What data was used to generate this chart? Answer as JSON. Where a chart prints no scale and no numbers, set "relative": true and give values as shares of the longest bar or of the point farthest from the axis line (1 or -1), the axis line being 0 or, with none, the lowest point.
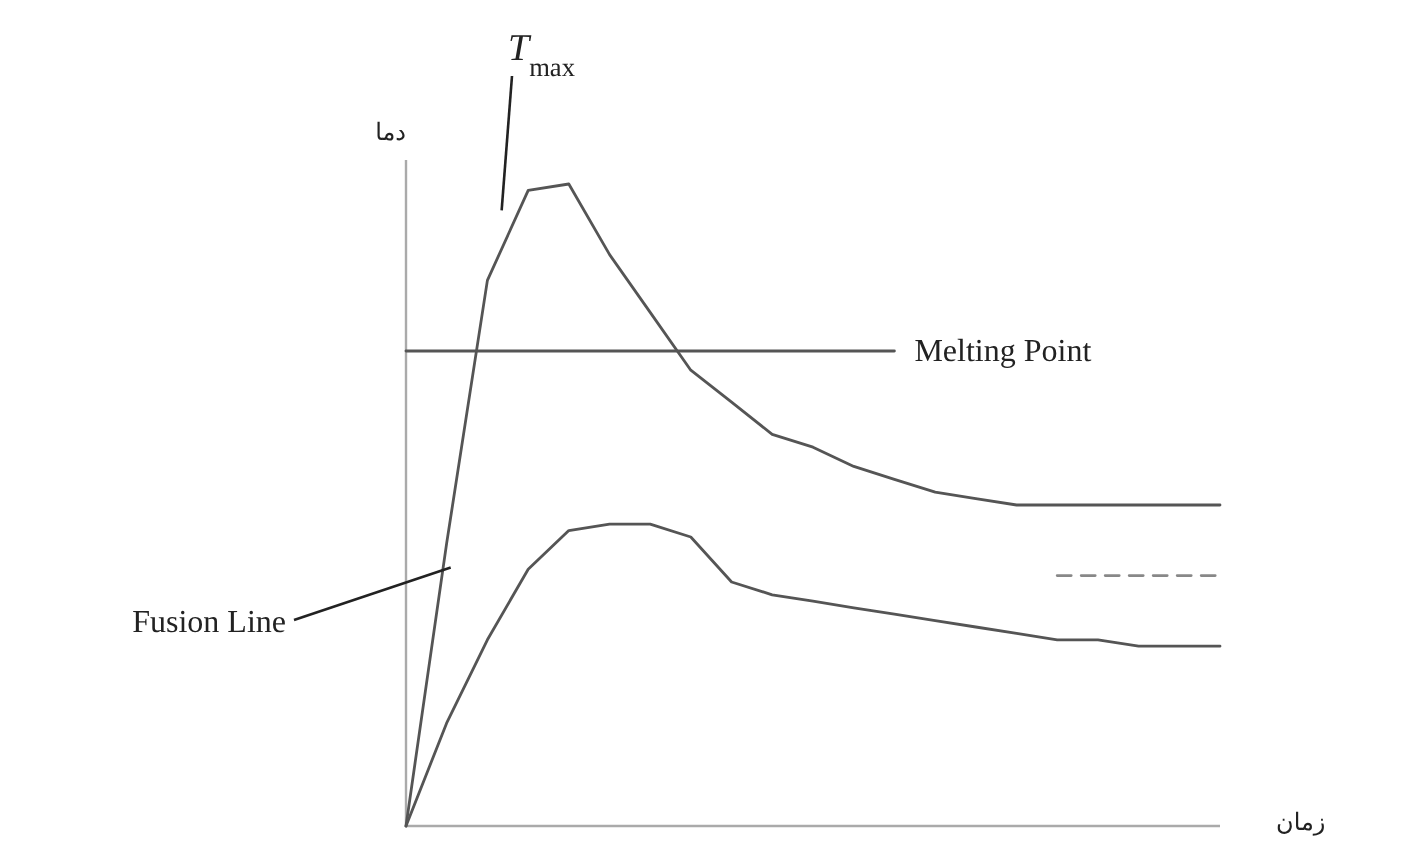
{
  "chart_data": {
    "type": "line",
    "relative": true,
    "xlabel": "زمان",
    "ylabel": "دما",
    "categories": [
      null,
      null,
      null,
      null,
      null,
      null,
      null,
      null,
      null,
      null,
      null,
      null,
      null,
      null,
      null,
      null,
      null,
      null,
      null,
      null,
      null
    ],
    "series": [
      {
        "color": "#555555",
        "values": [
          0,
          0.44,
          0.85,
          0.99,
          1.0,
          0.89,
          0.8,
          0.71,
          0.66,
          0.61,
          0.59,
          0.56,
          0.54,
          0.52,
          0.51,
          0.5,
          0.5,
          0.5,
          0.5,
          0.5,
          0.5
        ]
      },
      {
        "color": "#555555",
        "values": [
          0,
          0.16,
          0.29,
          0.4,
          0.46,
          0.47,
          0.47,
          0.45,
          0.38,
          0.36,
          0.35,
          0.34,
          0.33,
          0.32,
          0.31,
          0.3,
          0.29,
          0.29,
          0.28,
          0.28,
          0.28
        ]
      },
      {
        "color": "#888888",
        "line_style": "dashed",
        "values": [
          null,
          null,
          null,
          null,
          null,
          null,
          null,
          null,
          null,
          null,
          null,
          null,
          null,
          null,
          null,
          null,
          0.39,
          0.39,
          0.39,
          0.39,
          0.39
        ]
      },
      {
        "name": "Melting Point",
        "color": "#555555",
        "values": [
          0.74,
          0.74,
          0.74,
          0.74,
          0.74,
          0.74,
          0.74,
          0.74,
          0.74,
          0.74,
          0.74,
          0.74,
          0.74,
          null,
          null,
          null,
          null,
          null,
          null,
          null,
          null
        ]
      }
    ],
    "annotations": [
      "*T*$_{max}$",
      "Fusion Line"
    ]
  }
}
